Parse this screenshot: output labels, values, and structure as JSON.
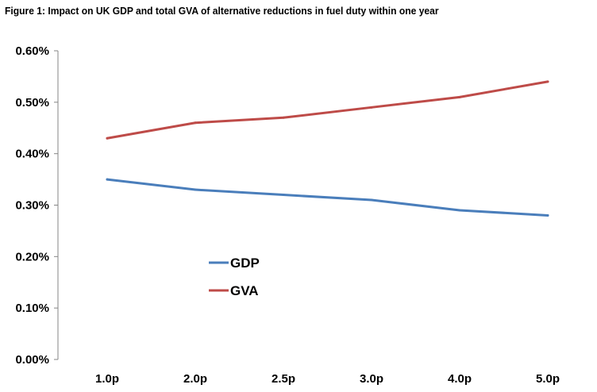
{
  "figure": {
    "title": "Figure 1: Impact on UK GDP and total GVA of alternative reductions in fuel duty within one year"
  },
  "chart_data": {
    "type": "line",
    "title": "Figure 1: Impact on UK GDP and total GVA of alternative reductions in fuel duty within one year",
    "xlabel": "",
    "ylabel": "",
    "categories": [
      "1.0p",
      "2.0p",
      "2.5p",
      "3.0p",
      "4.0p",
      "5.0p"
    ],
    "ylim": [
      0,
      0.006
    ],
    "yticks": [
      "0.00%",
      "0.10%",
      "0.20%",
      "0.30%",
      "0.40%",
      "0.50%",
      "0.60%"
    ],
    "grid": false,
    "legend_position": "center-left inside plot",
    "series": [
      {
        "name": "GDP",
        "color": "#4a7ebb",
        "values": [
          0.0035,
          0.0033,
          0.0032,
          0.0031,
          0.0029,
          0.0028
        ]
      },
      {
        "name": "GVA",
        "color": "#be4b48",
        "values": [
          0.0043,
          0.0046,
          0.0047,
          0.0049,
          0.0051,
          0.0054
        ]
      }
    ]
  }
}
